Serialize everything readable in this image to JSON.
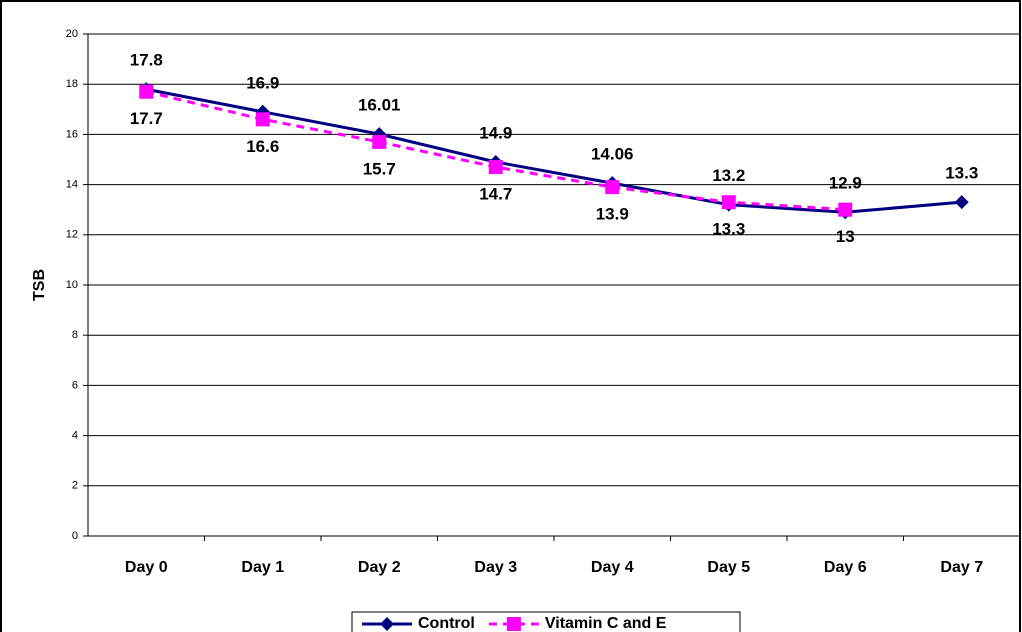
{
  "chart_data": {
    "type": "line",
    "y_label": "TSB",
    "categories": [
      "Day 0",
      "Day 1",
      "Day 2",
      "Day 3",
      "Day 4",
      "Day 5",
      "Day 6",
      "Day 7"
    ],
    "series": [
      {
        "name": "Control",
        "color": "#000080",
        "marker": "diamond",
        "dash": false,
        "label_position": "above",
        "values": [
          17.8,
          16.9,
          16.01,
          14.9,
          14.06,
          13.2,
          12.9,
          13.3
        ]
      },
      {
        "name": "Vitamin C and E",
        "color": "#ff00ff",
        "marker": "square",
        "dash": true,
        "label_position": "below",
        "values": [
          17.7,
          16.6,
          15.7,
          14.7,
          13.9,
          13.3,
          13,
          null
        ]
      }
    ],
    "ylim": [
      0,
      20
    ],
    "yticks": [
      0,
      2,
      4,
      6,
      8,
      10,
      12,
      14,
      16,
      18,
      20
    ],
    "grid": true,
    "legend": "bottom"
  }
}
